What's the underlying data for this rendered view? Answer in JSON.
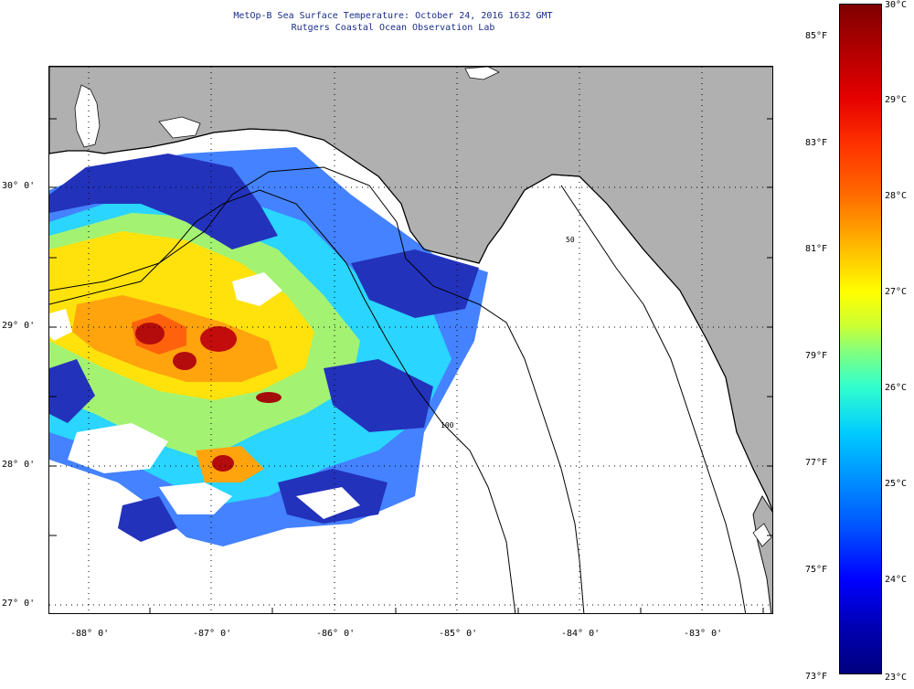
{
  "title": {
    "line1": "MetOp-B Sea Surface Temperature:  October 24, 2016 1632 GMT",
    "line2": "Rutgers Coastal Ocean Observation Lab"
  },
  "map": {
    "land_color": "#b0b0b0",
    "ocean_color": "#ffffff",
    "bathymetry_labels": [
      "50",
      "100"
    ],
    "lat_labels": [
      "30° 0'",
      "29° 0'",
      "28° 0'",
      "27° 0'"
    ],
    "lon_labels": [
      "-88° 0'",
      "-87° 0'",
      "-86° 0'",
      "-85° 0'",
      "-84° 0'",
      "-83° 0'"
    ]
  },
  "colorbar": {
    "celsius_labels": [
      "30°C",
      "29°C",
      "28°C",
      "27°C",
      "26°C",
      "25°C",
      "24°C",
      "23°C"
    ],
    "fahrenheit_labels": [
      "85°F",
      "83°F",
      "81°F",
      "79°F",
      "77°F",
      "75°F",
      "73°F"
    ]
  }
}
